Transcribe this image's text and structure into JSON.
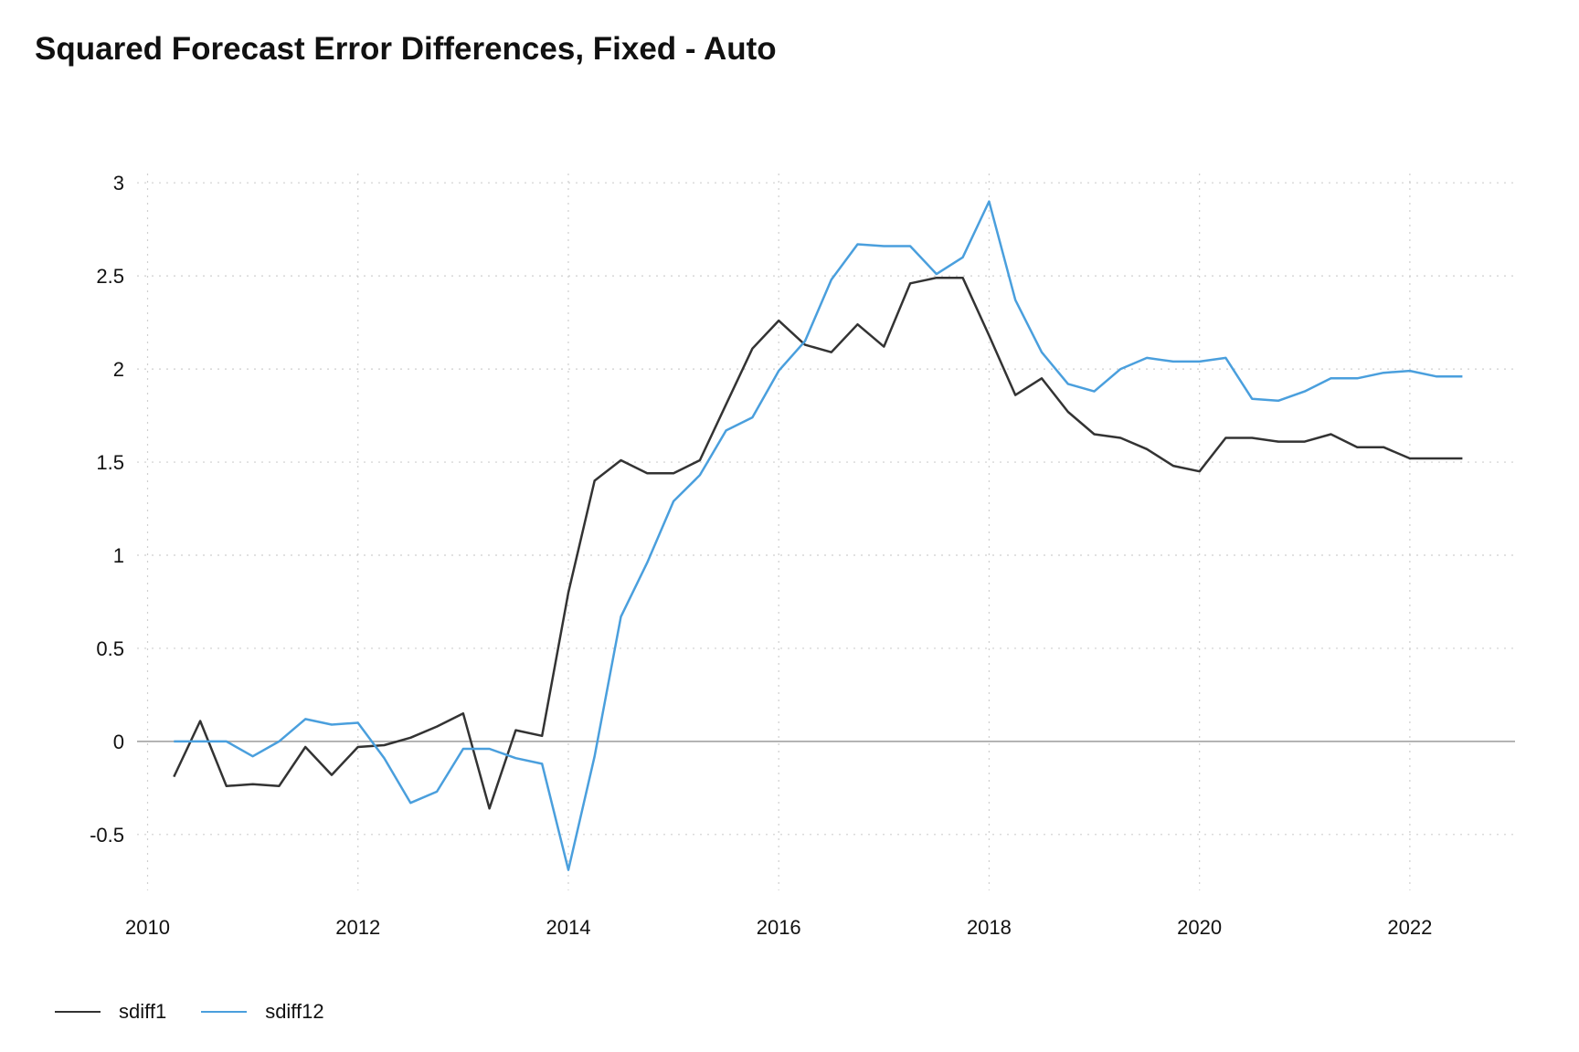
{
  "chart_data": {
    "type": "line",
    "title": "Squared Forecast Error Differences, Fixed - Auto",
    "xlabel": "",
    "ylabel": "",
    "xlim": [
      2009.9,
      2023.0
    ],
    "ylim": [
      -0.8,
      3.05
    ],
    "x_ticks": [
      2010,
      2012,
      2014,
      2016,
      2018,
      2020,
      2022
    ],
    "x_tick_labels": [
      "2010",
      "2012",
      "2014",
      "2016",
      "2018",
      "2020",
      "2022"
    ],
    "y_ticks": [
      -0.5,
      0,
      0.5,
      1,
      1.5,
      2,
      2.5,
      3
    ],
    "y_tick_labels": [
      "-0.5",
      "0",
      "0.5",
      "1",
      "1.5",
      "2",
      "2.5",
      "3"
    ],
    "grid": true,
    "zero_line": true,
    "legend_position": "bottom-left",
    "x": [
      2010.25,
      2010.5,
      2010.75,
      2011.0,
      2011.25,
      2011.5,
      2011.75,
      2012.0,
      2012.25,
      2012.5,
      2012.75,
      2013.0,
      2013.25,
      2013.5,
      2013.75,
      2014.0,
      2014.25,
      2014.5,
      2014.75,
      2015.0,
      2015.25,
      2015.5,
      2015.75,
      2016.0,
      2016.25,
      2016.5,
      2016.75,
      2017.0,
      2017.25,
      2017.5,
      2017.75,
      2018.0,
      2018.25,
      2018.5,
      2018.75,
      2019.0,
      2019.25,
      2019.5,
      2019.75,
      2020.0,
      2020.25,
      2020.5,
      2020.75,
      2021.0,
      2021.25,
      2021.5,
      2021.75,
      2022.0,
      2022.25,
      2022.5
    ],
    "series": [
      {
        "name": "sdiff1",
        "color": "#333333",
        "values": [
          -0.19,
          0.11,
          -0.24,
          -0.23,
          -0.24,
          -0.03,
          -0.18,
          -0.03,
          -0.02,
          0.02,
          0.08,
          0.15,
          -0.36,
          0.06,
          0.03,
          0.8,
          1.4,
          1.51,
          1.44,
          1.44,
          1.51,
          1.81,
          2.11,
          2.26,
          2.13,
          2.09,
          2.24,
          2.12,
          2.46,
          2.49,
          2.49,
          2.18,
          1.86,
          1.95,
          1.77,
          1.65,
          1.63,
          1.57,
          1.48,
          1.45,
          1.63,
          1.63,
          1.61,
          1.61,
          1.65,
          1.58,
          1.58,
          1.52,
          1.52,
          1.52
        ]
      },
      {
        "name": "sdiff12",
        "color": "#4a9fdd",
        "values": [
          0.0,
          0.0,
          0.0,
          -0.08,
          0.0,
          0.12,
          0.09,
          0.1,
          -0.09,
          -0.33,
          -0.27,
          -0.04,
          -0.04,
          -0.09,
          -0.12,
          -0.69,
          -0.08,
          0.67,
          0.96,
          1.29,
          1.43,
          1.67,
          1.74,
          1.99,
          2.15,
          2.48,
          2.67,
          2.66,
          2.66,
          2.51,
          2.6,
          2.9,
          2.37,
          2.09,
          1.92,
          1.88,
          2.0,
          2.06,
          2.04,
          2.04,
          2.06,
          1.84,
          1.83,
          1.88,
          1.95,
          1.95,
          1.98,
          1.99,
          1.96,
          1.96
        ]
      }
    ]
  }
}
